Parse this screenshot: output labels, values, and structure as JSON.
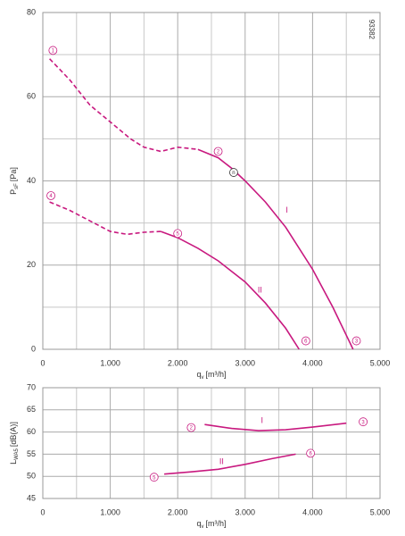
{
  "chart_data": [
    {
      "type": "line",
      "ylabel": "P",
      "ylabel_sub": "sF",
      "ylabel_unit": "[Pa]",
      "xlabel": "q",
      "xlabel_sub": "v",
      "xlabel_unit": "[m³/h]",
      "xlim": [
        0,
        5000
      ],
      "xticks": [
        0,
        {
          "value": 1000,
          "label": "1.000"
        },
        {
          "value": 2000,
          "label": "2.000"
        },
        {
          "value": 3000,
          "label": "3.000"
        },
        {
          "value": 4000,
          "label": "4.000"
        },
        {
          "value": 5000,
          "label": "5.000"
        }
      ],
      "xgrid": [
        500,
        1500,
        2500,
        3500,
        4500
      ],
      "ylim": [
        0,
        80
      ],
      "yticks": [
        0,
        20,
        40,
        60,
        80
      ],
      "ygrid": [
        10,
        30,
        50,
        70
      ],
      "grid": true,
      "series": [
        {
          "color": "#c8197f",
          "style": "dashed",
          "x": [
            100,
            400,
            700,
            1000,
            1300,
            1500,
            1750,
            2000,
            2300
          ],
          "values": [
            69,
            64,
            58,
            54,
            50,
            48,
            47,
            48,
            47.5
          ]
        },
        {
          "color": "#c8197f",
          "style": "solid",
          "x": [
            2300,
            2600,
            2800,
            3000,
            3300,
            3600,
            4000,
            4300,
            4600
          ],
          "values": [
            47.5,
            45.5,
            43,
            40,
            35,
            29,
            19,
            10,
            0
          ]
        },
        {
          "color": "#c8197f",
          "style": "dashed",
          "x": [
            100,
            400,
            700,
            1000,
            1250,
            1500,
            1750
          ],
          "values": [
            35,
            33,
            30.5,
            28,
            27.3,
            27.8,
            28
          ]
        },
        {
          "color": "#c8197f",
          "style": "solid",
          "x": [
            1750,
            2000,
            2300,
            2600,
            3000,
            3300,
            3600,
            3800
          ],
          "values": [
            28,
            26.5,
            24,
            21,
            16,
            11,
            5,
            0
          ]
        }
      ],
      "annotations": [
        {
          "kind": "circled",
          "text": "1",
          "color": "#c8197f",
          "x": 150,
          "y": 71
        },
        {
          "kind": "circled",
          "text": "2",
          "color": "#c8197f",
          "x": 2600,
          "y": 47
        },
        {
          "kind": "circled",
          "text": "n",
          "color": "#333333",
          "x": 2830,
          "y": 42
        },
        {
          "kind": "circled",
          "text": "3",
          "color": "#c8197f",
          "x": 4650,
          "y": 2
        },
        {
          "kind": "circled",
          "text": "4",
          "color": "#c8197f",
          "x": 120,
          "y": 36.5
        },
        {
          "kind": "circled",
          "text": "5",
          "color": "#c8197f",
          "x": 2000,
          "y": 27.5
        },
        {
          "kind": "circled",
          "text": "6",
          "color": "#c8197f",
          "x": 3900,
          "y": 2
        },
        {
          "kind": "text",
          "text": "I",
          "color": "#c8197f",
          "x": 3620,
          "y": 33
        },
        {
          "kind": "text",
          "text": "II",
          "color": "#c8197f",
          "x": 3220,
          "y": 14
        },
        {
          "kind": "vertical",
          "text": "93382",
          "color": "#333333",
          "x": 4870,
          "y": 76
        }
      ]
    },
    {
      "type": "line",
      "ylabel": "L",
      "ylabel_sub": "WA5",
      "ylabel_unit": "[dB(A)]",
      "xlabel": "q",
      "xlabel_sub": "v",
      "xlabel_unit": "[m³/h]",
      "xlim": [
        0,
        5000
      ],
      "xticks": [
        0,
        {
          "value": 1000,
          "label": "1.000"
        },
        {
          "value": 2000,
          "label": "2.000"
        },
        {
          "value": 3000,
          "label": "3.000"
        },
        {
          "value": 4000,
          "label": "4.000"
        },
        {
          "value": 5000,
          "label": "5.000"
        }
      ],
      "xgrid": [
        500,
        1500,
        2500,
        3500,
        4500
      ],
      "ylim": [
        45,
        70
      ],
      "yticks": [
        45,
        50,
        55,
        60,
        65,
        70
      ],
      "ygrid": [],
      "grid": true,
      "series": [
        {
          "color": "#c8197f",
          "style": "solid",
          "x": [
            2400,
            2800,
            3200,
            3600,
            4000,
            4500
          ],
          "values": [
            61.7,
            60.8,
            60.3,
            60.5,
            61.1,
            62
          ]
        },
        {
          "color": "#c8197f",
          "style": "solid",
          "x": [
            1800,
            2200,
            2600,
            3000,
            3400,
            3750
          ],
          "values": [
            50.5,
            51,
            51.6,
            52.7,
            54,
            55
          ]
        }
      ],
      "annotations": [
        {
          "kind": "circled",
          "text": "2",
          "color": "#c8197f",
          "x": 2200,
          "y": 61
        },
        {
          "kind": "circled",
          "text": "3",
          "color": "#c8197f",
          "x": 4750,
          "y": 62.3
        },
        {
          "kind": "circled",
          "text": "5",
          "color": "#c8197f",
          "x": 1650,
          "y": 49.8
        },
        {
          "kind": "circled",
          "text": "6",
          "color": "#c8197f",
          "x": 3970,
          "y": 55.2
        },
        {
          "kind": "text",
          "text": "I",
          "color": "#c8197f",
          "x": 3250,
          "y": 62.5
        },
        {
          "kind": "text",
          "text": "II",
          "color": "#c8197f",
          "x": 2650,
          "y": 53.2
        }
      ]
    }
  ]
}
